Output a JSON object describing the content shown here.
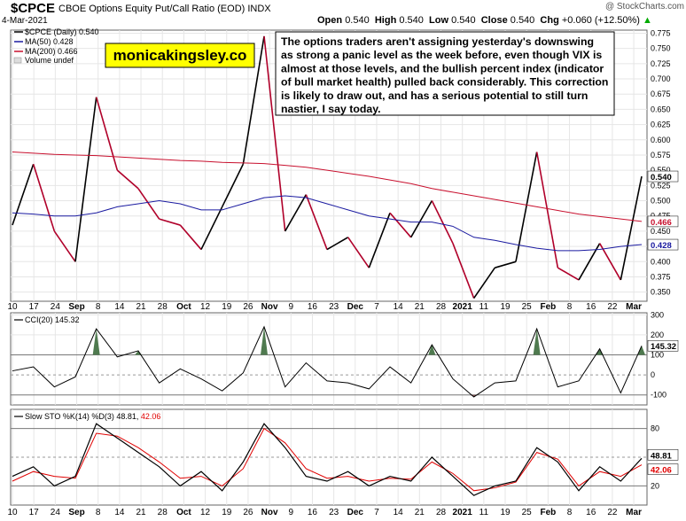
{
  "header": {
    "symbol": "$CPCE",
    "subtitle": "CBOE Options Equity Put/Call Ratio (EOD)  INDX",
    "date": "4-Mar-2021",
    "open_label": "Open",
    "open": "0.540",
    "high_label": "High",
    "high": "0.540",
    "low_label": "Low",
    "low": "0.540",
    "close_label": "Close",
    "close": "0.540",
    "chg_label": "Chg",
    "chg": "+0.060 (+12.50%)",
    "chg_arrow": "▲",
    "watermark": "@ StockCharts.com"
  },
  "legend": {
    "price": "$CPCE (Daily) 0.540",
    "ma50": "MA(50) 0.428",
    "ma200": "MA(200) 0.466",
    "volume": "Volume undef"
  },
  "brand_label": "monicakingsley.co",
  "annotation": "The options traders aren't assigning yesterday's downswing as strong a panic level as the week before, even though VIX is almost at those levels, and the bullish percent index (indicator of bull market health) pulled back considerably. This correction is likely to draw out, and has a serious potential to still turn nastier, I say today.",
  "price_panel": {
    "yticks": [
      "0.775",
      "0.750",
      "0.725",
      "0.700",
      "0.675",
      "0.650",
      "0.625",
      "0.600",
      "0.575",
      "0.550",
      "0.525",
      "0.500",
      "0.475",
      "0.450",
      "0.425",
      "0.400",
      "0.375",
      "0.350"
    ],
    "ma50_label": "0.428",
    "ma200_label": "0.466",
    "last_label": "0.540"
  },
  "cci_panel": {
    "legend": "CCI(20) 145.32",
    "yticks": [
      "300",
      "200",
      "100",
      "0",
      "-100"
    ],
    "last_label": "145.32"
  },
  "sto_panel": {
    "legend_prefix": "Slow STO %K(14) %D(3) 48.81,",
    "legend_d": "42.06",
    "yticks": [
      "80",
      "20"
    ],
    "k_label": "48.81",
    "d_label": "42.06"
  },
  "xaxis": [
    "10",
    "17",
    "24",
    "Sep",
    "8",
    "14",
    "21",
    "28",
    "Oct",
    "12",
    "19",
    "26",
    "Nov",
    "9",
    "16",
    "23",
    "Dec",
    "7",
    "14",
    "21",
    "28",
    "2021",
    "11",
    "19",
    "25",
    "Feb",
    "8",
    "16",
    "22",
    "Mar"
  ],
  "colors": {
    "price_up": "#000000",
    "price_down": "#b0002a",
    "ma50": "#1a1aa0",
    "ma200": "#c8102e",
    "cci_fill": "#4f7a4f",
    "cci_fill_neg": "#8a5555",
    "sto_k": "#000000",
    "sto_d": "#e00000",
    "brand_bg": "#ffff00"
  },
  "chart_data": [
    {
      "type": "line",
      "title": "$CPCE CBOE Options Equity Put/Call Ratio (EOD)",
      "x": [
        "Aug 10",
        "Aug 17",
        "Aug 24",
        "Sep 1",
        "Sep 8",
        "Sep 14",
        "Sep 21",
        "Sep 28",
        "Oct 5",
        "Oct 12",
        "Oct 19",
        "Oct 26",
        "Nov 2",
        "Nov 9",
        "Nov 16",
        "Nov 23",
        "Dec 1",
        "Dec 7",
        "Dec 14",
        "Dec 21",
        "Dec 28",
        "Jan 4",
        "Jan 11",
        "Jan 19",
        "Jan 25",
        "Feb 1",
        "Feb 8",
        "Feb 16",
        "Feb 22",
        "Mar 1",
        "Mar 4"
      ],
      "ylim": [
        0.335,
        0.78
      ],
      "series": [
        {
          "name": "$CPCE (Daily) 0.540",
          "values": [
            0.46,
            0.56,
            0.45,
            0.4,
            0.67,
            0.55,
            0.52,
            0.47,
            0.46,
            0.42,
            0.49,
            0.56,
            0.77,
            0.45,
            0.51,
            0.42,
            0.44,
            0.39,
            0.48,
            0.44,
            0.5,
            0.43,
            0.34,
            0.39,
            0.4,
            0.58,
            0.39,
            0.37,
            0.43,
            0.37,
            0.54
          ]
        },
        {
          "name": "MA(50) 0.428",
          "values": [
            0.48,
            0.478,
            0.475,
            0.475,
            0.48,
            0.49,
            0.495,
            0.5,
            0.495,
            0.485,
            0.485,
            0.495,
            0.505,
            0.508,
            0.505,
            0.495,
            0.485,
            0.475,
            0.47,
            0.465,
            0.465,
            0.458,
            0.44,
            0.435,
            0.428,
            0.422,
            0.418,
            0.418,
            0.42,
            0.425,
            0.428
          ]
        },
        {
          "name": "MA(200) 0.466",
          "values": [
            0.58,
            0.578,
            0.576,
            0.575,
            0.574,
            0.572,
            0.57,
            0.568,
            0.566,
            0.565,
            0.563,
            0.562,
            0.561,
            0.558,
            0.555,
            0.55,
            0.545,
            0.54,
            0.534,
            0.528,
            0.52,
            0.514,
            0.508,
            0.502,
            0.496,
            0.49,
            0.484,
            0.478,
            0.474,
            0.47,
            0.466
          ]
        }
      ]
    },
    {
      "type": "line",
      "title": "CCI(20) 145.32",
      "ylim": [
        -150,
        310
      ],
      "series": [
        {
          "name": "CCI(20) 145.32",
          "values": [
            20,
            40,
            -60,
            -10,
            230,
            90,
            120,
            -40,
            30,
            -20,
            -80,
            10,
            240,
            -60,
            60,
            -30,
            -40,
            -70,
            40,
            -40,
            150,
            -20,
            -110,
            -40,
            -30,
            230,
            -60,
            -30,
            130,
            -90,
            145
          ]
        }
      ]
    },
    {
      "type": "line",
      "title": "Slow STO %K(14) %D(3) 48.81, 42.06",
      "ylim": [
        0,
        100
      ],
      "series": [
        {
          "name": "%K(14)",
          "values": [
            30,
            40,
            20,
            30,
            85,
            70,
            55,
            40,
            20,
            35,
            15,
            45,
            85,
            60,
            30,
            25,
            35,
            20,
            30,
            25,
            50,
            30,
            10,
            20,
            25,
            60,
            45,
            15,
            40,
            25,
            48.81
          ]
        },
        {
          "name": "%D(3)",
          "values": [
            25,
            35,
            30,
            28,
            75,
            72,
            60,
            45,
            28,
            30,
            20,
            38,
            80,
            65,
            38,
            28,
            30,
            25,
            28,
            27,
            45,
            33,
            15,
            18,
            24,
            55,
            48,
            20,
            35,
            30,
            42.06
          ]
        }
      ]
    }
  ]
}
